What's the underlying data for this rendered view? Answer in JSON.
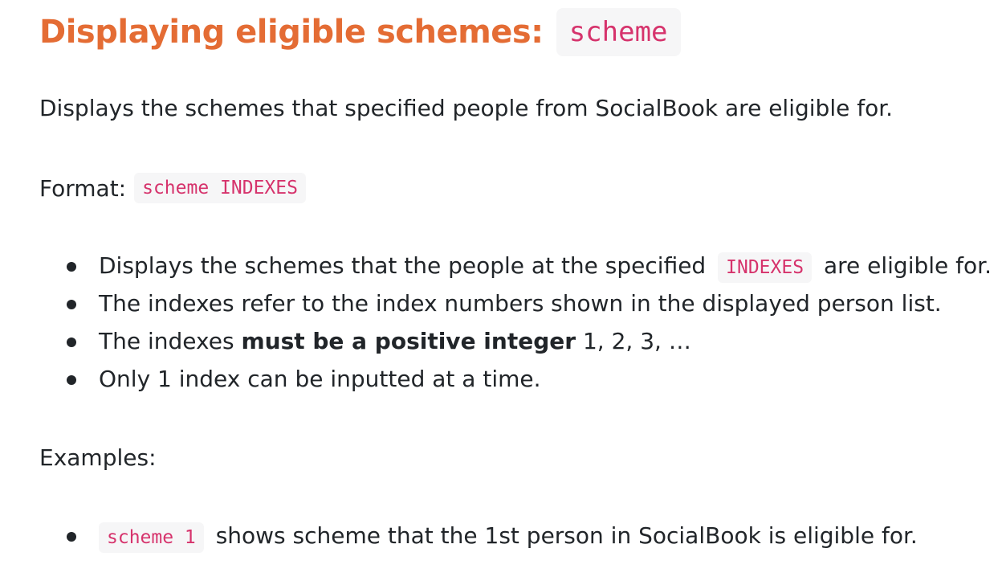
{
  "heading": {
    "text": "Displaying eligible schemes:",
    "code": "scheme"
  },
  "description": "Displays the schemes that specified people from SocialBook are eligible for.",
  "format": {
    "label": "Format:",
    "code": "scheme INDEXES"
  },
  "notes": [
    {
      "before": "Displays the schemes that the people at the specified",
      "code": "INDEXES",
      "after": "are eligible for."
    },
    {
      "text": "The indexes refer to the index numbers shown in the displayed person list."
    },
    {
      "before": "The indexes",
      "bold": "must be a positive integer",
      "after": "1, 2, 3, …"
    },
    {
      "text": "Only 1 index can be inputted at a time."
    }
  ],
  "examples_label": "Examples:",
  "examples": [
    {
      "code": "scheme 1",
      "text": "shows scheme that the 1st person in SocialBook is eligible for."
    }
  ],
  "colors": {
    "heading": "#e46c34",
    "code_text": "#d6336c",
    "code_background": "#f6f6f7",
    "body_text": "#212529"
  }
}
